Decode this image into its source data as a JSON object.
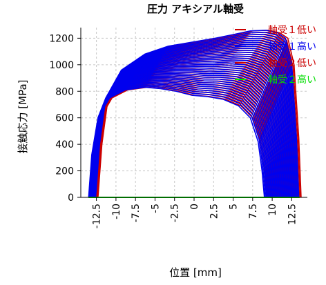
{
  "chart_data": {
    "type": "line",
    "title": "圧力 アキシアル軸受",
    "xlabel": "位置 [mm]",
    "ylabel": "接触応力 [MPa]",
    "xlim": [
      -14.5,
      14.5
    ],
    "ylim": [
      0,
      1280
    ],
    "xticks": [
      "-12.5",
      "-10",
      "-7.5",
      "-5",
      "-2.5",
      "0",
      "2.5",
      "5",
      "7.5",
      "10",
      "12.5"
    ],
    "xtick_values": [
      -12.5,
      -10,
      -7.5,
      -5,
      -2.5,
      0,
      2.5,
      5,
      7.5,
      10,
      12.5
    ],
    "yticks": [
      "0",
      "200",
      "400",
      "600",
      "800",
      "1000",
      "1200"
    ],
    "ytick_values": [
      0,
      200,
      400,
      600,
      800,
      1000,
      1200
    ],
    "grid": true,
    "legend_position": "top-right",
    "colors": {
      "red": "#cc0000",
      "blue": "#0000ee",
      "green": "#00dd00"
    },
    "series": [
      {
        "name": "軸受１低い",
        "color": "#cc0000",
        "curve_count": 35,
        "first_curve": {
          "x": [
            -13.2,
            -12.8,
            -12.0,
            -10.5,
            -8.5,
            -6.0,
            -4.0,
            -2.0,
            0.0,
            2.0,
            4.0,
            6.0,
            7.5,
            8.5,
            9.0,
            9.3
          ],
          "y": [
            0,
            320,
            600,
            750,
            810,
            830,
            820,
            800,
            770,
            760,
            740,
            690,
            600,
            420,
            200,
            0
          ]
        },
        "last_curve": {
          "x": [
            -12.3,
            -11.8,
            -11.0,
            -9.0,
            -6.0,
            -3.0,
            0.0,
            3.0,
            5.5,
            7.5,
            9.5,
            11.0,
            12.0,
            12.8,
            13.4,
            13.7
          ],
          "y": [
            0,
            400,
            750,
            960,
            1080,
            1140,
            1170,
            1200,
            1230,
            1255,
            1260,
            1240,
            1200,
            1000,
            450,
            0
          ]
        }
      },
      {
        "name": "軸受１高い",
        "color": "#0000ee",
        "curve_count": 35,
        "first_curve": {
          "x": [
            -13.5,
            -13.1,
            -12.3,
            -10.8,
            -8.8,
            -6.3,
            -4.3,
            -2.3,
            -0.3,
            1.7,
            3.7,
            5.7,
            7.2,
            8.2,
            8.7,
            9.0
          ],
          "y": [
            0,
            320,
            600,
            750,
            810,
            830,
            820,
            800,
            770,
            760,
            740,
            690,
            600,
            420,
            200,
            0
          ]
        },
        "last_curve": {
          "x": [
            -12.6,
            -12.1,
            -11.3,
            -9.3,
            -6.3,
            -3.3,
            -0.3,
            2.7,
            5.2,
            7.2,
            9.2,
            10.7,
            11.7,
            12.5,
            13.1,
            13.4
          ],
          "y": [
            0,
            400,
            750,
            960,
            1080,
            1140,
            1170,
            1200,
            1230,
            1255,
            1260,
            1240,
            1200,
            1000,
            450,
            0
          ]
        }
      },
      {
        "name": "軸受２低い",
        "color": "#cc0000",
        "x": [
          -13.5,
          13.5
        ],
        "y": [
          0,
          0
        ]
      },
      {
        "name": "軸受２高い",
        "color": "#00dd00",
        "x": [
          -13.5,
          13.5
        ],
        "y": [
          0,
          0
        ]
      }
    ]
  }
}
